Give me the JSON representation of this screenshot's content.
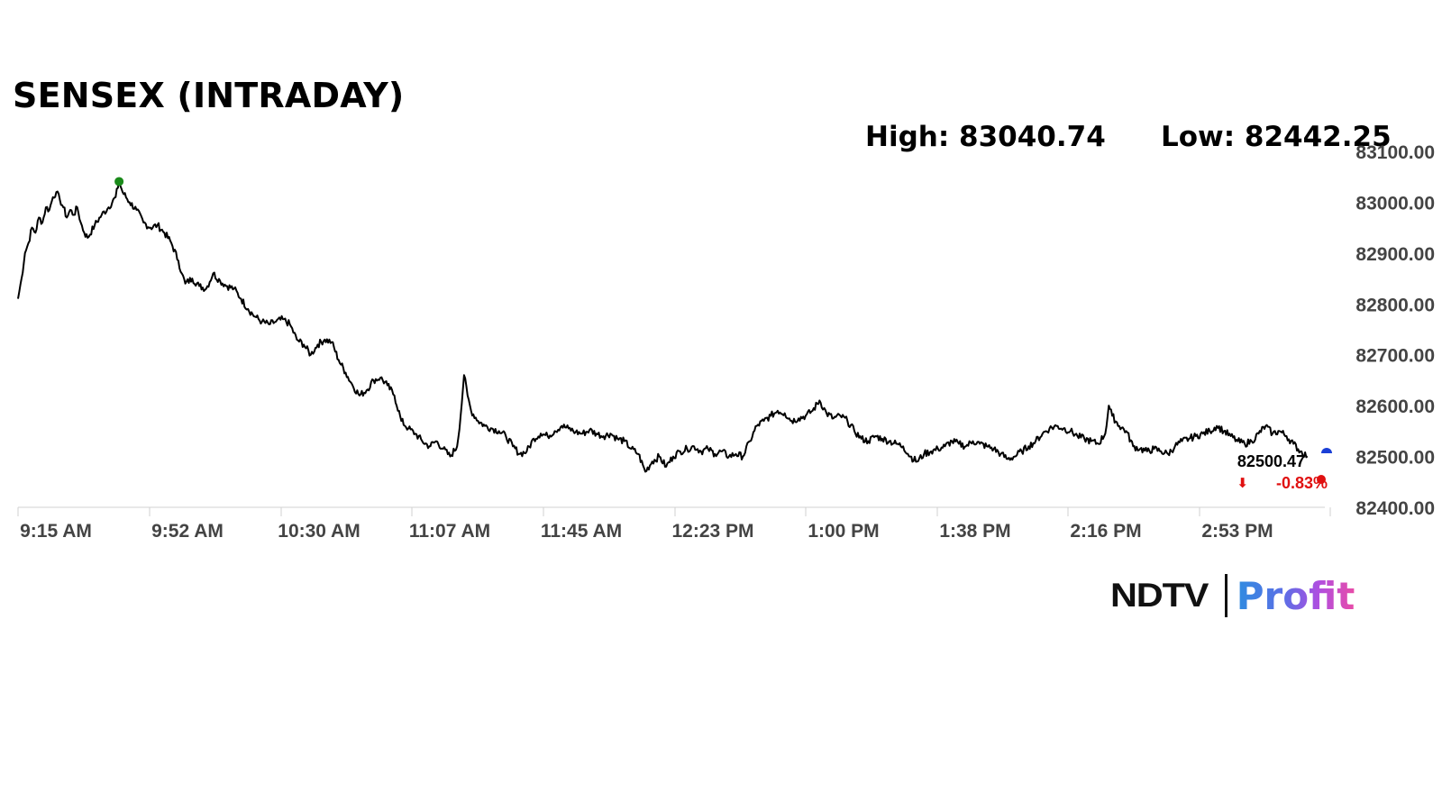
{
  "title": "SENSEX (INTRADAY)",
  "high_label": "High: 83040.74",
  "low_label": "Low: 82442.25",
  "logo": {
    "left_text": "NDTV",
    "right_text": "Profit"
  },
  "colors": {
    "line": "#000000",
    "high_marker": "#1a8a1a",
    "close_marker": "#e01010",
    "end_marker": "#1a3fd6",
    "change": "#e01010",
    "axis": "#d0d0d0"
  },
  "chart_data": {
    "type": "line",
    "title": "SENSEX (INTRADAY)",
    "xlabel": "",
    "ylabel": "",
    "x_ticks": [
      "9:15 AM",
      "9:52 AM",
      "10:30 AM",
      "11:07 AM",
      "11:45 AM",
      "12:23 PM",
      "1:00 PM",
      "1:38 PM",
      "2:16 PM",
      "2:53 PM"
    ],
    "y_ticks": [
      "82400.00",
      "82500.00",
      "82600.00",
      "82700.00",
      "82800.00",
      "82900.00",
      "83000.00",
      "83100.00"
    ],
    "ylim": [
      82400,
      83100
    ],
    "xlim_minutes": [
      0,
      375
    ],
    "high": 83040.74,
    "low": 82442.25,
    "last_value": "82500.47",
    "change": "-0.83%",
    "change_arrow": "⬇",
    "series": [
      {
        "values": [
          [
            0,
            82810
          ],
          [
            1,
            82850
          ],
          [
            2,
            82900
          ],
          [
            3,
            82920
          ],
          [
            4,
            82950
          ],
          [
            5,
            82940
          ],
          [
            6,
            82970
          ],
          [
            7,
            82960
          ],
          [
            8,
            82990
          ],
          [
            9,
            82985
          ],
          [
            10,
            83010
          ],
          [
            11,
            83020
          ],
          [
            12,
            83005
          ],
          [
            13,
            82990
          ],
          [
            14,
            82970
          ],
          [
            15,
            82985
          ],
          [
            16,
            82975
          ],
          [
            17,
            82990
          ],
          [
            18,
            82960
          ],
          [
            19,
            82940
          ],
          [
            20,
            82930
          ],
          [
            22,
            82955
          ],
          [
            24,
            82975
          ],
          [
            26,
            82990
          ],
          [
            28,
            83010
          ],
          [
            29,
            83040.74
          ],
          [
            30,
            83020
          ],
          [
            32,
            83000
          ],
          [
            34,
            82985
          ],
          [
            36,
            82960
          ],
          [
            38,
            82950
          ],
          [
            40,
            82955
          ],
          [
            42,
            82940
          ],
          [
            44,
            82920
          ],
          [
            46,
            82885
          ],
          [
            47,
            82860
          ],
          [
            48,
            82840
          ],
          [
            50,
            82850
          ],
          [
            52,
            82835
          ],
          [
            54,
            82830
          ],
          [
            56,
            82860
          ],
          [
            58,
            82845
          ],
          [
            60,
            82835
          ],
          [
            62,
            82830
          ],
          [
            64,
            82810
          ],
          [
            66,
            82790
          ],
          [
            68,
            82775
          ],
          [
            70,
            82765
          ],
          [
            72,
            82760
          ],
          [
            74,
            82765
          ],
          [
            76,
            82770
          ],
          [
            78,
            82760
          ],
          [
            80,
            82730
          ],
          [
            82,
            82720
          ],
          [
            84,
            82700
          ],
          [
            86,
            82720
          ],
          [
            88,
            82730
          ],
          [
            90,
            82725
          ],
          [
            92,
            82690
          ],
          [
            94,
            82665
          ],
          [
            96,
            82640
          ],
          [
            98,
            82620
          ],
          [
            100,
            82630
          ],
          [
            102,
            82650
          ],
          [
            104,
            82655
          ],
          [
            106,
            82640
          ],
          [
            108,
            82620
          ],
          [
            110,
            82570
          ],
          [
            112,
            82555
          ],
          [
            114,
            82545
          ],
          [
            116,
            82530
          ],
          [
            118,
            82520
          ],
          [
            120,
            82530
          ],
          [
            122,
            82515
          ],
          [
            124,
            82500
          ],
          [
            126,
            82520
          ],
          [
            127,
            82580
          ],
          [
            128,
            82660
          ],
          [
            129,
            82620
          ],
          [
            130,
            82590
          ],
          [
            132,
            82570
          ],
          [
            134,
            82560
          ],
          [
            136,
            82555
          ],
          [
            138,
            82550
          ],
          [
            140,
            82540
          ],
          [
            142,
            82520
          ],
          [
            144,
            82505
          ],
          [
            146,
            82510
          ],
          [
            148,
            82535
          ],
          [
            150,
            82545
          ],
          [
            152,
            82540
          ],
          [
            154,
            82550
          ],
          [
            156,
            82560
          ],
          [
            158,
            82555
          ],
          [
            160,
            82548
          ],
          [
            162,
            82545
          ],
          [
            164,
            82552
          ],
          [
            166,
            82545
          ],
          [
            168,
            82540
          ],
          [
            170,
            82545
          ],
          [
            172,
            82535
          ],
          [
            174,
            82530
          ],
          [
            176,
            82515
          ],
          [
            178,
            82505
          ],
          [
            180,
            82470
          ],
          [
            182,
            82490
          ],
          [
            184,
            82500
          ],
          [
            186,
            82480
          ],
          [
            188,
            82500
          ],
          [
            190,
            82510
          ],
          [
            192,
            82515
          ],
          [
            194,
            82520
          ],
          [
            196,
            82510
          ],
          [
            198,
            82515
          ],
          [
            200,
            82505
          ],
          [
            202,
            82510
          ],
          [
            204,
            82500
          ],
          [
            206,
            82505
          ],
          [
            208,
            82500
          ],
          [
            210,
            82530
          ],
          [
            212,
            82560
          ],
          [
            214,
            82570
          ],
          [
            216,
            82580
          ],
          [
            218,
            82590
          ],
          [
            220,
            82585
          ],
          [
            222,
            82570
          ],
          [
            224,
            82575
          ],
          [
            226,
            82580
          ],
          [
            228,
            82590
          ],
          [
            230,
            82610
          ],
          [
            232,
            82585
          ],
          [
            234,
            82575
          ],
          [
            236,
            82580
          ],
          [
            238,
            82570
          ],
          [
            240,
            82550
          ],
          [
            242,
            82535
          ],
          [
            244,
            82530
          ],
          [
            246,
            82540
          ],
          [
            248,
            82535
          ],
          [
            250,
            82530
          ],
          [
            252,
            82525
          ],
          [
            254,
            82520
          ],
          [
            256,
            82500
          ],
          [
            258,
            82490
          ],
          [
            260,
            82505
          ],
          [
            262,
            82510
          ],
          [
            264,
            82515
          ],
          [
            266,
            82520
          ],
          [
            268,
            82530
          ],
          [
            270,
            82525
          ],
          [
            272,
            82520
          ],
          [
            274,
            82530
          ],
          [
            276,
            82525
          ],
          [
            278,
            82520
          ],
          [
            280,
            82515
          ],
          [
            282,
            82505
          ],
          [
            284,
            82495
          ],
          [
            286,
            82500
          ],
          [
            288,
            82510
          ],
          [
            290,
            82520
          ],
          [
            292,
            82530
          ],
          [
            294,
            82545
          ],
          [
            296,
            82555
          ],
          [
            298,
            82560
          ],
          [
            300,
            82555
          ],
          [
            302,
            82550
          ],
          [
            304,
            82540
          ],
          [
            306,
            82535
          ],
          [
            308,
            82530
          ],
          [
            310,
            82525
          ],
          [
            312,
            82545
          ],
          [
            313,
            82600
          ],
          [
            314,
            82580
          ],
          [
            316,
            82560
          ],
          [
            318,
            82550
          ],
          [
            320,
            82520
          ],
          [
            322,
            82515
          ],
          [
            324,
            82510
          ],
          [
            326,
            82515
          ],
          [
            328,
            82510
          ],
          [
            330,
            82505
          ],
          [
            332,
            82520
          ],
          [
            334,
            82530
          ],
          [
            336,
            82535
          ],
          [
            338,
            82540
          ],
          [
            340,
            82545
          ],
          [
            342,
            82550
          ],
          [
            344,
            82560
          ],
          [
            346,
            82550
          ],
          [
            348,
            82540
          ],
          [
            350,
            82530
          ],
          [
            352,
            82525
          ],
          [
            354,
            82530
          ],
          [
            356,
            82545
          ],
          [
            358,
            82560
          ],
          [
            360,
            82545
          ],
          [
            362,
            82550
          ],
          [
            364,
            82540
          ],
          [
            366,
            82525
          ],
          [
            368,
            82510
          ],
          [
            370,
            82500.47
          ]
        ]
      }
    ]
  }
}
